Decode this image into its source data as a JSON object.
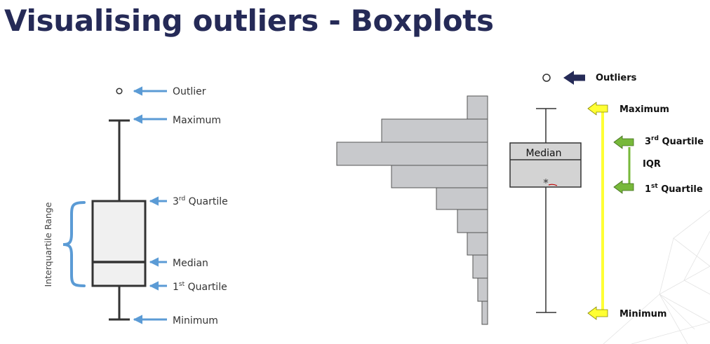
{
  "slide": {
    "title": "Visualising outliers - Boxplots"
  },
  "left_diagram": {
    "axis_label": "Interquartile Range",
    "labels": {
      "outlier": "Outlier",
      "maximum": "Maximum",
      "q3_prefix": "3",
      "q3_sup": "rd",
      "q3_suffix": " Quartile",
      "median": "Median",
      "q1_prefix": "1",
      "q1_sup": "st",
      "q1_suffix": " Quartile",
      "minimum": "Minimum"
    }
  },
  "right_diagram": {
    "labels": {
      "outliers": "Outliers",
      "maximum": "Maximum",
      "q3_prefix": "3",
      "q3_sup": "rd",
      "q3_suffix": " Quartile",
      "iqr": "IQR",
      "q1_prefix": "1",
      "q1_sup": "st",
      "q1_suffix": " Quartile",
      "minimum": "Minimum",
      "median": "Median",
      "mean_marker": "*"
    }
  },
  "colors": {
    "title": "#252a57",
    "arrow_blue": "#5b9bd5",
    "bracket_blue": "#5b9bd5",
    "box_fill": "#f0f0f0",
    "box_stroke": "#333333",
    "hist_fill": "#c8c9cc",
    "arrow_navy": "#252a57",
    "arrow_yellow": "#ffff33",
    "arrow_green": "#77b83a"
  }
}
